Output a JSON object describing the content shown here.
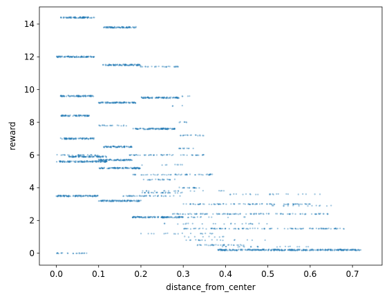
{
  "chart_data": {
    "type": "scatter",
    "xlabel": "distance_from_center",
    "ylabel": "reward",
    "xlim": [
      -0.04,
      0.77
    ],
    "ylim": [
      -0.73,
      15.05
    ],
    "grid": false,
    "marker_color": "#1f77b4",
    "x_ticks": [
      {
        "value": 0.0,
        "label": "0.0"
      },
      {
        "value": 0.1,
        "label": "0.1"
      },
      {
        "value": 0.2,
        "label": "0.2"
      },
      {
        "value": 0.3,
        "label": "0.3"
      },
      {
        "value": 0.4,
        "label": "0.4"
      },
      {
        "value": 0.5,
        "label": "0.5"
      },
      {
        "value": 0.6,
        "label": "0.6"
      },
      {
        "value": 0.7,
        "label": "0.7"
      }
    ],
    "y_ticks": [
      {
        "value": 0,
        "label": "0"
      },
      {
        "value": 2,
        "label": "2"
      },
      {
        "value": 4,
        "label": "4"
      },
      {
        "value": 6,
        "label": "6"
      },
      {
        "value": 8,
        "label": "8"
      },
      {
        "value": 10,
        "label": "10"
      },
      {
        "value": 12,
        "label": "12"
      },
      {
        "value": 14,
        "label": "14"
      }
    ],
    "clusters": [
      {
        "y": 14.4,
        "x_from": 0.01,
        "x_to": 0.09,
        "density": "dense"
      },
      {
        "y": 13.8,
        "x_from": 0.11,
        "x_to": 0.19,
        "density": "dense"
      },
      {
        "y": 12.0,
        "x_from": 0.0,
        "x_to": 0.09,
        "density": "dense"
      },
      {
        "y": 11.5,
        "x_from": 0.11,
        "x_to": 0.2,
        "density": "dense"
      },
      {
        "y": 11.4,
        "x_from": 0.19,
        "x_to": 0.29,
        "density": "medium"
      },
      {
        "y": 9.6,
        "x_from": 0.01,
        "x_to": 0.09,
        "density": "dense"
      },
      {
        "y": 9.5,
        "x_from": 0.2,
        "x_to": 0.29,
        "density": "dense"
      },
      {
        "y": 9.6,
        "x_from": 0.29,
        "x_to": 0.33,
        "density": "sparse"
      },
      {
        "y": 9.2,
        "x_from": 0.1,
        "x_to": 0.19,
        "density": "dense"
      },
      {
        "y": 9.0,
        "x_from": 0.27,
        "x_to": 0.3,
        "density": "sparse"
      },
      {
        "y": 8.4,
        "x_from": 0.01,
        "x_to": 0.08,
        "density": "dense"
      },
      {
        "y": 8.0,
        "x_from": 0.29,
        "x_to": 0.31,
        "density": "medium"
      },
      {
        "y": 7.8,
        "x_from": 0.1,
        "x_to": 0.17,
        "density": "medium"
      },
      {
        "y": 7.6,
        "x_from": 0.18,
        "x_to": 0.28,
        "density": "dense"
      },
      {
        "y": 7.0,
        "x_from": 0.01,
        "x_to": 0.09,
        "density": "dense"
      },
      {
        "y": 7.2,
        "x_from": 0.29,
        "x_to": 0.35,
        "density": "medium"
      },
      {
        "y": 6.5,
        "x_from": 0.11,
        "x_to": 0.18,
        "density": "dense"
      },
      {
        "y": 6.4,
        "x_from": 0.29,
        "x_to": 0.33,
        "density": "medium"
      },
      {
        "y": 6.0,
        "x_from": 0.0,
        "x_to": 0.1,
        "density": "medium"
      },
      {
        "y": 6.0,
        "x_from": 0.17,
        "x_to": 0.35,
        "density": "medium"
      },
      {
        "y": 5.9,
        "x_from": 0.03,
        "x_to": 0.12,
        "density": "dense"
      },
      {
        "y": 5.7,
        "x_from": 0.1,
        "x_to": 0.18,
        "density": "dense"
      },
      {
        "y": 5.6,
        "x_from": 0.0,
        "x_to": 0.12,
        "density": "dense"
      },
      {
        "y": 5.4,
        "x_from": 0.2,
        "x_to": 0.3,
        "density": "sparse"
      },
      {
        "y": 5.2,
        "x_from": 0.1,
        "x_to": 0.2,
        "density": "dense"
      },
      {
        "y": 4.8,
        "x_from": 0.18,
        "x_to": 0.37,
        "density": "medium"
      },
      {
        "y": 4.5,
        "x_from": 0.2,
        "x_to": 0.28,
        "density": "medium"
      },
      {
        "y": 4.0,
        "x_from": 0.29,
        "x_to": 0.35,
        "density": "medium"
      },
      {
        "y": 3.8,
        "x_from": 0.2,
        "x_to": 0.4,
        "density": "sparse"
      },
      {
        "y": 3.7,
        "x_from": 0.2,
        "x_to": 0.3,
        "density": "medium"
      },
      {
        "y": 3.6,
        "x_from": 0.37,
        "x_to": 0.63,
        "density": "sparse"
      },
      {
        "y": 3.5,
        "x_from": 0.0,
        "x_to": 0.1,
        "density": "dense"
      },
      {
        "y": 3.5,
        "x_from": 0.15,
        "x_to": 0.3,
        "density": "medium"
      },
      {
        "y": 3.2,
        "x_from": 0.1,
        "x_to": 0.2,
        "density": "dense"
      },
      {
        "y": 3.0,
        "x_from": 0.3,
        "x_to": 0.6,
        "density": "medium"
      },
      {
        "y": 2.9,
        "x_from": 0.5,
        "x_to": 0.65,
        "density": "sparse"
      },
      {
        "y": 2.4,
        "x_from": 0.27,
        "x_to": 0.65,
        "density": "medium"
      },
      {
        "y": 2.2,
        "x_from": 0.18,
        "x_to": 0.3,
        "density": "dense"
      },
      {
        "y": 2.2,
        "x_from": 0.3,
        "x_to": 0.45,
        "density": "sparse"
      },
      {
        "y": 1.8,
        "x_from": 0.25,
        "x_to": 0.5,
        "density": "sparse"
      },
      {
        "y": 1.5,
        "x_from": 0.3,
        "x_to": 0.68,
        "density": "medium"
      },
      {
        "y": 1.2,
        "x_from": 0.2,
        "x_to": 0.4,
        "density": "sparse"
      },
      {
        "y": 1.0,
        "x_from": 0.3,
        "x_to": 0.4,
        "density": "sparse"
      },
      {
        "y": 0.8,
        "x_from": 0.3,
        "x_to": 0.5,
        "density": "sparse"
      },
      {
        "y": 0.5,
        "x_from": 0.33,
        "x_to": 0.45,
        "density": "medium"
      },
      {
        "y": 0.4,
        "x_from": 0.38,
        "x_to": 0.6,
        "density": "sparse"
      },
      {
        "y": 0.2,
        "x_from": 0.38,
        "x_to": 0.72,
        "density": "dense"
      },
      {
        "y": 0.0,
        "x_from": 0.0,
        "x_to": 0.08,
        "density": "medium"
      }
    ]
  }
}
